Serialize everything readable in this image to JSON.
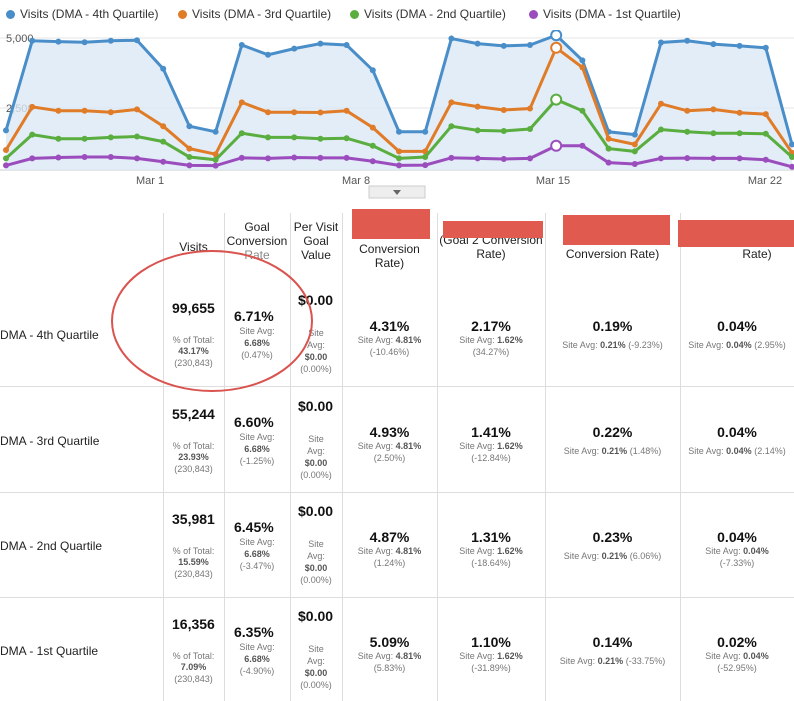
{
  "legend": [
    {
      "label": "Visits (DMA - 4th Quartile)",
      "color": "#4a8ec9"
    },
    {
      "label": "Visits (DMA - 3rd Quartile)",
      "color": "#e07b28"
    },
    {
      "label": "Visits (DMA - 2nd Quartile)",
      "color": "#5aad3f"
    },
    {
      "label": "Visits (DMA - 1st Quartile)",
      "color": "#9b4dbd"
    }
  ],
  "chart_data": {
    "type": "area",
    "y_ticks": [
      "5,000",
      "2,500"
    ],
    "x_ticks": [
      "Mar 1",
      "Mar 8",
      "Mar 15",
      "Mar 22"
    ],
    "ylim": [
      0,
      5500
    ],
    "series": [
      {
        "name": "Visits (DMA - 4th Quartile)",
        "color": "#4a8ec9",
        "values": [
          1700,
          4900,
          4870,
          4850,
          4900,
          4920,
          3900,
          1850,
          1650,
          4750,
          4400,
          4620,
          4800,
          4750,
          3850,
          1650,
          1650,
          4980,
          4800,
          4720,
          4750,
          5100,
          4200,
          1650,
          1550,
          4840,
          4900,
          4780,
          4720,
          4650,
          1200
        ]
      },
      {
        "name": "Visits (DMA - 3rd Quartile)",
        "color": "#e07b28",
        "values": [
          1000,
          2540,
          2400,
          2400,
          2350,
          2450,
          1850,
          1050,
          850,
          2700,
          2350,
          2350,
          2340,
          2400,
          1800,
          950,
          950,
          2700,
          2550,
          2430,
          2480,
          4650,
          3950,
          1400,
          1200,
          2650,
          2400,
          2450,
          2330,
          2280,
          900
        ]
      },
      {
        "name": "Visits (DMA - 2nd Quartile)",
        "color": "#5aad3f",
        "values": [
          700,
          1550,
          1400,
          1400,
          1450,
          1480,
          1300,
          750,
          650,
          1600,
          1450,
          1450,
          1400,
          1420,
          1150,
          700,
          750,
          1850,
          1700,
          1680,
          1750,
          2800,
          2400,
          1050,
          950,
          1730,
          1650,
          1600,
          1600,
          1580,
          750
        ]
      },
      {
        "name": "Visits (DMA - 1st Quartile)",
        "color": "#9b4dbd",
        "values": [
          450,
          700,
          730,
          750,
          750,
          700,
          580,
          450,
          440,
          720,
          700,
          730,
          720,
          720,
          600,
          450,
          460,
          720,
          700,
          680,
          700,
          1150,
          1150,
          550,
          500,
          700,
          710,
          700,
          700,
          650,
          400
        ]
      }
    ]
  },
  "headers": {
    "visits": "Visits",
    "gcr": [
      "Goal",
      "Conversion",
      "Rate"
    ],
    "pvgv": [
      "Per Visit",
      "Goal",
      "Value"
    ],
    "c4": [
      "Conversion",
      "Rate)"
    ],
    "c5": [
      "(Goal 2 Conversion",
      "Rate)"
    ],
    "c6": [
      "Conversion Rate)"
    ],
    "c7": [
      "Rate)"
    ]
  },
  "rows": [
    {
      "label": "DMA - 4th Quartile",
      "visits": "99,655",
      "pct_label": "% of Total:",
      "pct": "43.17%",
      "total": "(230,843)",
      "gcr": "6.71%",
      "gcr_site_label": "Site Avg:",
      "gcr_site": "6.68%",
      "gcr_diff": "(0.47%)",
      "pv": "$0.00",
      "pv_site_label1": "Site",
      "pv_site_label2": "Avg:",
      "pv_site": "$0.00",
      "pv_diff": "(0.00%)",
      "c4": "4.31%",
      "c4_site_label": "Site Avg:",
      "c4_site": "4.81%",
      "c4_diff": "(-10.46%)",
      "c5": "2.17%",
      "c5_site_label": "Site Avg:",
      "c5_site": "1.62%",
      "c5_diff": "(34.27%)",
      "c6": "0.19%",
      "c6_site_label": "Site Avg:",
      "c6_site": "0.21%",
      "c6_diff": "(-9.23%)",
      "c7": "0.04%",
      "c7_site_label": "Site Avg:",
      "c7_site": "0.04%",
      "c7_diff": "(2.95%)"
    },
    {
      "label": "DMA - 3rd Quartile",
      "visits": "55,244",
      "pct_label": "% of Total:",
      "pct": "23.93%",
      "total": "(230,843)",
      "gcr": "6.60%",
      "gcr_site_label": "Site Avg:",
      "gcr_site": "6.68%",
      "gcr_diff": "(-1.25%)",
      "pv": "$0.00",
      "pv_site_label1": "Site",
      "pv_site_label2": "Avg:",
      "pv_site": "$0.00",
      "pv_diff": "(0.00%)",
      "c4": "4.93%",
      "c4_site_label": "Site Avg:",
      "c4_site": "4.81%",
      "c4_diff": "(2.50%)",
      "c5": "1.41%",
      "c5_site_label": "Site Avg:",
      "c5_site": "1.62%",
      "c5_diff": "(-12.84%)",
      "c6": "0.22%",
      "c6_site_label": "Site Avg:",
      "c6_site": "0.21%",
      "c6_diff": "(1.48%)",
      "c7": "0.04%",
      "c7_site_label": "Site Avg:",
      "c7_site": "0.04%",
      "c7_diff": "(2.14%)"
    },
    {
      "label": "DMA - 2nd Quartile",
      "visits": "35,981",
      "pct_label": "% of Total:",
      "pct": "15.59%",
      "total": "(230,843)",
      "gcr": "6.45%",
      "gcr_site_label": "Site Avg:",
      "gcr_site": "6.68%",
      "gcr_diff": "(-3.47%)",
      "pv": "$0.00",
      "pv_site_label1": "Site",
      "pv_site_label2": "Avg:",
      "pv_site": "$0.00",
      "pv_diff": "(0.00%)",
      "c4": "4.87%",
      "c4_site_label": "Site Avg:",
      "c4_site": "4.81%",
      "c4_diff": "(1.24%)",
      "c5": "1.31%",
      "c5_site_label": "Site Avg:",
      "c5_site": "1.62%",
      "c5_diff": "(-18.64%)",
      "c6": "0.23%",
      "c6_site_label": "Site Avg:",
      "c6_site": "0.21%",
      "c6_diff": "(6.06%)",
      "c7": "0.04%",
      "c7_site_label": "Site Avg:",
      "c7_site": "0.04%",
      "c7_diff": "(-7.33%)"
    },
    {
      "label": "DMA - 1st Quartile",
      "visits": "16,356",
      "pct_label": "% of Total:",
      "pct": "7.09%",
      "total": "(230,843)",
      "gcr": "6.35%",
      "gcr_site_label": "Site Avg:",
      "gcr_site": "6.68%",
      "gcr_diff": "(-4.90%)",
      "pv": "$0.00",
      "pv_site_label1": "Site",
      "pv_site_label2": "Avg:",
      "pv_site": "$0.00",
      "pv_diff": "(0.00%)",
      "c4": "5.09%",
      "c4_site_label": "Site Avg:",
      "c4_site": "4.81%",
      "c4_diff": "(5.83%)",
      "c5": "1.10%",
      "c5_site_label": "Site Avg:",
      "c5_site": "1.62%",
      "c5_diff": "(-31.89%)",
      "c6": "0.14%",
      "c6_site_label": "Site Avg:",
      "c6_site": "0.21%",
      "c6_diff": "(-33.75%)",
      "c7": "0.02%",
      "c7_site_label": "Site Avg:",
      "c7_site": "0.04%",
      "c7_diff": "(-52.95%)"
    }
  ],
  "colors": {
    "highlight_circle": "#d9534f",
    "redaction": "#e05a4f"
  }
}
